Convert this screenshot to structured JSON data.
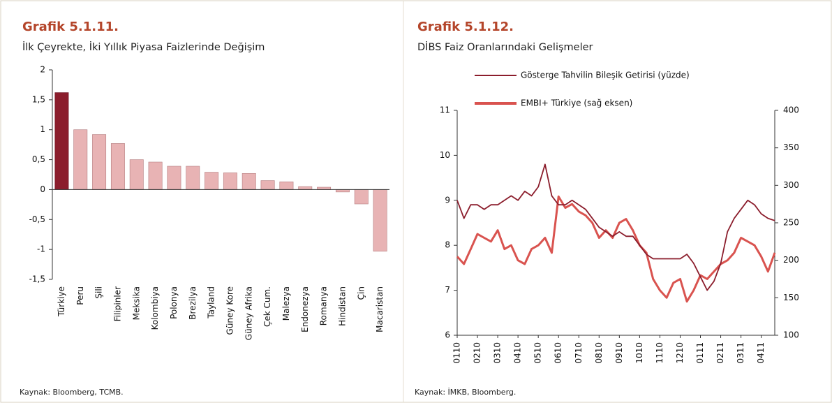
{
  "chart_data": [
    {
      "type": "bar",
      "title": "Grafik 5.1.11.",
      "subtitle": "İlk Çeyrekte, İki Yıllık Piyasa Faizlerinde Değişim",
      "source": "Kaynak: Bloomberg, TCMB.",
      "categories": [
        "Türkiye",
        "Peru",
        "Şili",
        "Filipinler",
        "Meksika",
        "Kolombiya",
        "Polonya",
        "Brezilya",
        "Tayland",
        "Güney Kore",
        "Güney Afrika",
        "Çek Cum.",
        "Malezya",
        "Endonezya",
        "Romanya",
        "Hindistan",
        "Çin",
        "Macaristan"
      ],
      "values": [
        1.62,
        1.0,
        0.92,
        0.77,
        0.5,
        0.46,
        0.39,
        0.39,
        0.29,
        0.28,
        0.27,
        0.15,
        0.13,
        0.05,
        0.04,
        -0.04,
        -0.24,
        -1.03
      ],
      "colors": [
        "#8b1d2c",
        "#e8b3b4",
        "#e8b3b4",
        "#e8b3b4",
        "#e8b3b4",
        "#e8b3b4",
        "#e8b3b4",
        "#e8b3b4",
        "#e8b3b4",
        "#e8b3b4",
        "#e8b3b4",
        "#e8b3b4",
        "#e8b3b4",
        "#e8b3b4",
        "#e8b3b4",
        "#e8b3b4",
        "#e8b3b4",
        "#e8b3b4"
      ],
      "ylim": [
        -1.5,
        2
      ],
      "yticks": [
        {
          "value": -1.5,
          "label": "-1,5"
        },
        -1,
        {
          "value": -0.5,
          "label": "-0,5"
        },
        0,
        {
          "value": 0.5,
          "label": "0,5"
        },
        1,
        {
          "value": 1.5,
          "label": "1,5"
        },
        2
      ]
    },
    {
      "type": "line",
      "title": "Grafik 5.1.12.",
      "subtitle": "DİBS Faiz Oranlarındaki Gelişmeler",
      "source": "Kaynak: İMKB, Bloomberg.",
      "categories": [
        "0110",
        null,
        null,
        "0210",
        null,
        null,
        "0310",
        null,
        null,
        "0410",
        null,
        null,
        "0510",
        null,
        null,
        "0610",
        null,
        null,
        "0710",
        null,
        null,
        "0810",
        null,
        null,
        "0910",
        null,
        null,
        "1010",
        null,
        null,
        "1110",
        null,
        null,
        "1210",
        null,
        null,
        "0111",
        null,
        null,
        "0211",
        null,
        null,
        "0311",
        null,
        null,
        "0411",
        null,
        null
      ],
      "series": [
        {
          "name": "Gösterge Tahvilin Bileşik Getirisi (yüzde)",
          "color": "#8b1d2c",
          "values": [
            9.0,
            8.6,
            8.9,
            8.9,
            8.8,
            8.9,
            8.9,
            9.0,
            9.1,
            9.0,
            9.2,
            9.1,
            9.3,
            9.8,
            9.1,
            8.9,
            8.9,
            9.0,
            8.9,
            8.8,
            8.6,
            8.4,
            8.3,
            8.2,
            8.3,
            8.2,
            8.2,
            8.0,
            7.8,
            7.7,
            7.7,
            7.7,
            7.7,
            7.7,
            7.8,
            7.6,
            7.3,
            7.0,
            7.2,
            7.6,
            8.3,
            8.6,
            8.8,
            9.0,
            8.9,
            8.7,
            8.6,
            8.55
          ]
        },
        {
          "name": "EMBI+ Türkiye (sağ eksen)",
          "color": "#d9534f",
          "axis": "y2",
          "values": [
            205,
            195,
            215,
            235,
            230,
            225,
            240,
            215,
            220,
            200,
            195,
            215,
            220,
            230,
            210,
            285,
            270,
            275,
            265,
            260,
            250,
            230,
            240,
            230,
            250,
            255,
            240,
            220,
            210,
            175,
            160,
            150,
            170,
            175,
            145,
            160,
            180,
            175,
            185,
            195,
            200,
            210,
            230,
            225,
            220,
            205,
            185,
            210
          ]
        }
      ],
      "ylim": [
        6,
        11
      ],
      "yticks": [
        6,
        7,
        8,
        9,
        10,
        11
      ],
      "y2lim": [
        100,
        400
      ],
      "y2ticks": [
        100,
        150,
        200,
        250,
        300,
        350,
        400
      ]
    }
  ]
}
